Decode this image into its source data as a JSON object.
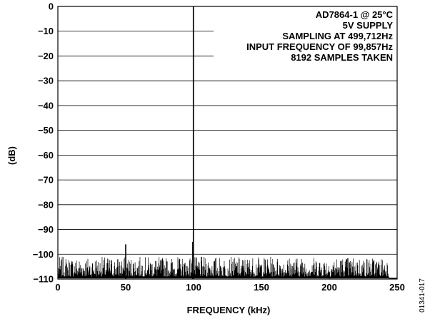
{
  "chart_data": {
    "type": "line",
    "title": "",
    "xlabel": "FREQUENCY (kHz)",
    "ylabel": "(dB)",
    "xlim": [
      0,
      250
    ],
    "ylim": [
      -110,
      0
    ],
    "x_ticks": [
      0,
      50,
      100,
      150,
      200,
      250
    ],
    "y_ticks": [
      0,
      -10,
      -20,
      -30,
      -40,
      -50,
      -60,
      -70,
      -80,
      -90,
      -100,
      -110
    ],
    "grid": "horizontal",
    "annotation": [
      "AD7864-1 @ 25°C",
      "5V SUPPLY",
      "SAMPLING AT 499,712Hz",
      "INPUT FREQUENCY OF 99,857Hz",
      "8192 SAMPLES TAKEN"
    ],
    "annotation_placement": "top-right",
    "figure_id": "01341-017",
    "series": [
      {
        "values_description": "FFT spectrum",
        "fundamental": {
          "x": 99.857,
          "y": 0
        },
        "spurs": [
          {
            "x": 50,
            "y": -96
          },
          {
            "x": 99.4,
            "y": -95
          }
        ],
        "noise_floor": {
          "x_start": 0.5,
          "x_end": 244,
          "y_min": -109,
          "y_max": -101
        },
        "tail": {
          "x_start": 244,
          "x_end": 250,
          "y": -110
        }
      }
    ]
  }
}
